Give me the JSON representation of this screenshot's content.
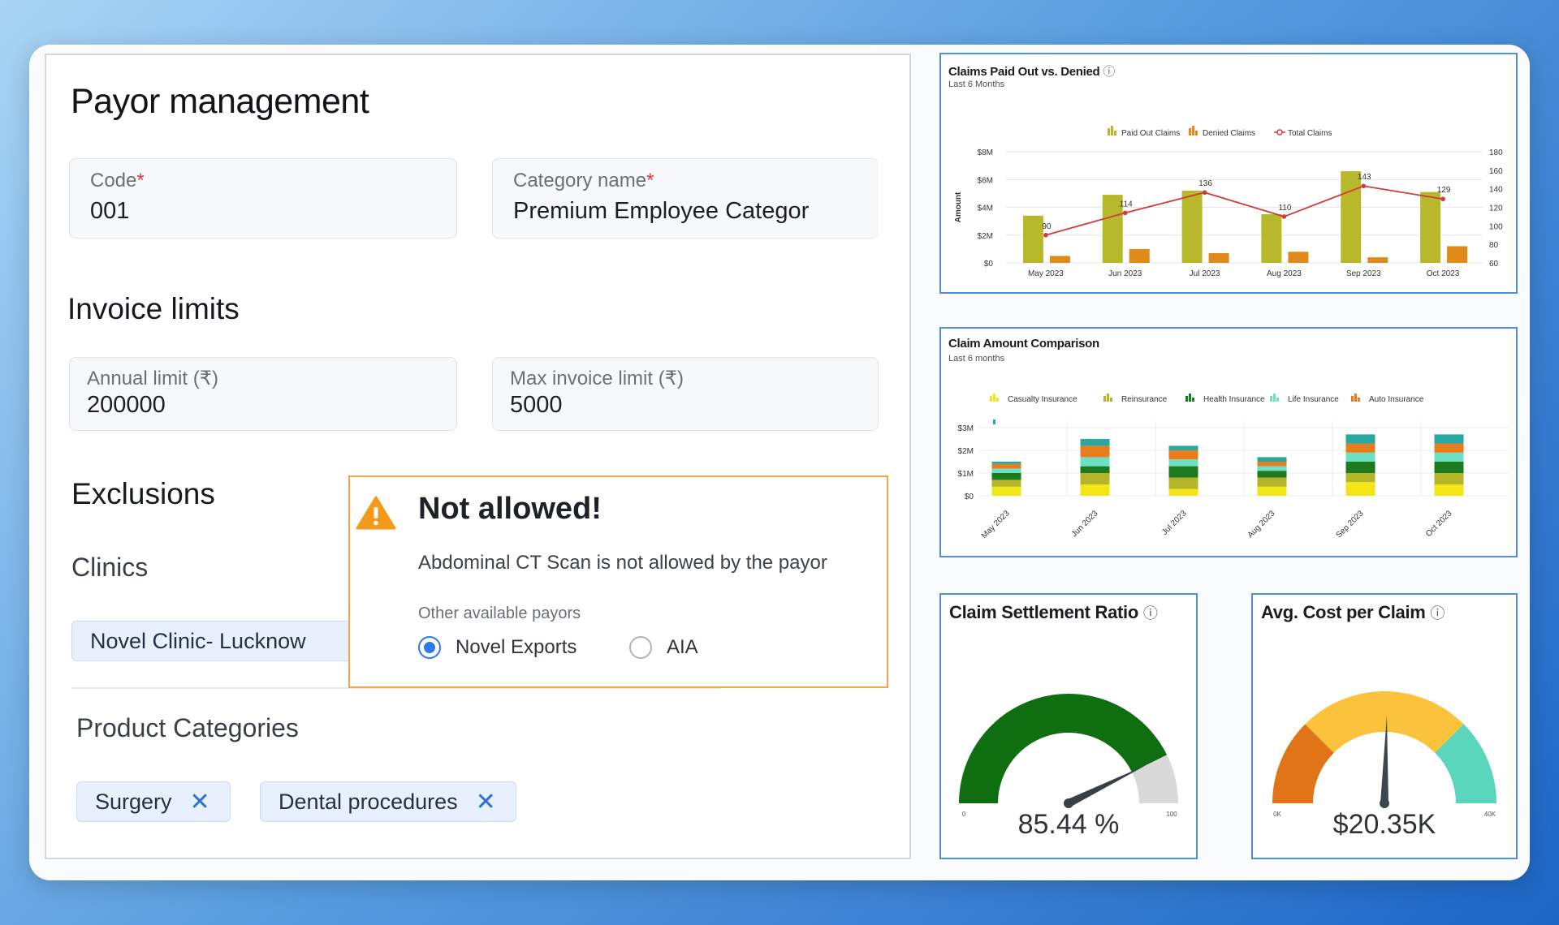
{
  "payor": {
    "title": "Payor management",
    "code": {
      "label": "Code",
      "required_mark": "*",
      "value": "001"
    },
    "category": {
      "label": "Category name",
      "required_mark": "*",
      "value": "Premium Employee Categor"
    },
    "invoice_title": "Invoice limits",
    "annual": {
      "label": "Annual limit (₹)",
      "value": "200000"
    },
    "max_invoice": {
      "label": "Max invoice limit (₹)",
      "value": "5000"
    },
    "exclusions_title": "Exclusions",
    "clinics_title": "Clinics",
    "clinic_chip": "Novel Clinic- Lucknow",
    "product_title": "Product Categories",
    "product_chips": [
      {
        "label": "Surgery",
        "remove_icon": "close-icon"
      },
      {
        "label": "Dental procedures",
        "remove_icon": "close-icon"
      }
    ]
  },
  "alert": {
    "icon": "warning-icon",
    "title": "Not allowed!",
    "message": "Abdominal CT Scan is not allowed by the payor",
    "options_label": "Other available payors",
    "options": [
      {
        "label": "Novel Exports",
        "selected": true
      },
      {
        "label": "AIA",
        "selected": false
      }
    ]
  },
  "colors": {
    "accent": "#2e7be8",
    "warning": "#f4a64a",
    "chart_border": "#4f8fe2"
  },
  "chart_data": [
    {
      "type": "bar",
      "title": "Claims Paid Out vs. Denied",
      "title_icon": "info-icon",
      "subtitle": "Last 6 Months",
      "ylabel": "Amount",
      "categories": [
        "May 2023",
        "Jun 2023",
        "Jul 2023",
        "Aug 2023",
        "Sep 2023",
        "Oct 2023"
      ],
      "y_ticks": [
        "$0",
        "$2M",
        "$4M",
        "$6M",
        "$8M"
      ],
      "y2_ticks": [
        "60",
        "80",
        "100",
        "120",
        "140",
        "160",
        "180"
      ],
      "ylim": [
        0,
        8
      ],
      "y2lim": [
        60,
        180
      ],
      "legend_position": "top",
      "series": [
        {
          "name": "Paid Out Claims",
          "kind": "bar",
          "color": "#b7b92a",
          "values": [
            3.4,
            4.9,
            5.2,
            3.5,
            6.6,
            5.1
          ]
        },
        {
          "name": "Denied Claims",
          "kind": "bar",
          "color": "#e08a1b",
          "values": [
            0.5,
            1.0,
            0.7,
            0.8,
            0.4,
            1.2
          ]
        },
        {
          "name": "Total Claims",
          "kind": "line",
          "axis": "right",
          "color": "#cf3c3c",
          "values": [
            90,
            114,
            136,
            110,
            143,
            129
          ],
          "labels": [
            "90",
            "114",
            "136",
            "110",
            "143",
            "129"
          ]
        }
      ]
    },
    {
      "type": "bar",
      "stacked": true,
      "title": "Claim Amount Comparison",
      "subtitle": "Last 6 months",
      "categories": [
        "May 2023",
        "Jun 2023",
        "Jul 2023",
        "Aug 2023",
        "Sep 2023",
        "Oct 2023"
      ],
      "y_ticks": [
        "$0",
        "$1M",
        "$2M",
        "$3M"
      ],
      "ylim": [
        0,
        3
      ],
      "legend_position": "top",
      "series": [
        {
          "name": "Casualty Insurance",
          "color": "#f2e616",
          "values": [
            0.4,
            0.5,
            0.3,
            0.4,
            0.6,
            0.5
          ]
        },
        {
          "name": "Reinsurance",
          "color": "#b5b52a",
          "values": [
            0.3,
            0.5,
            0.5,
            0.4,
            0.4,
            0.5
          ]
        },
        {
          "name": "Health Insurance",
          "color": "#1e7a1e",
          "values": [
            0.3,
            0.3,
            0.5,
            0.3,
            0.5,
            0.5
          ]
        },
        {
          "name": "Life Insurance",
          "color": "#6ee0c4",
          "values": [
            0.2,
            0.4,
            0.3,
            0.2,
            0.4,
            0.4
          ]
        },
        {
          "name": "Auto Insurance",
          "color": "#e87d1e",
          "values": [
            0.2,
            0.5,
            0.4,
            0.2,
            0.4,
            0.4
          ]
        },
        {
          "color": "#29a8a0",
          "values": [
            0.1,
            0.3,
            0.2,
            0.2,
            0.4,
            0.4
          ]
        }
      ]
    },
    {
      "type": "gauge",
      "title": "Claim Settlement Ratio",
      "title_icon": "info-icon",
      "value": 85.44,
      "value_label": "85.44 %",
      "min_label": "0",
      "max_label": "100",
      "min": 0,
      "max": 100
    },
    {
      "type": "gauge",
      "title": "Avg. Cost per Claim",
      "title_icon": "info-icon",
      "value": 20.35,
      "value_label": "$20.35K",
      "min_label": "0K",
      "max_label": "40K",
      "min": 0,
      "max": 40
    }
  ]
}
